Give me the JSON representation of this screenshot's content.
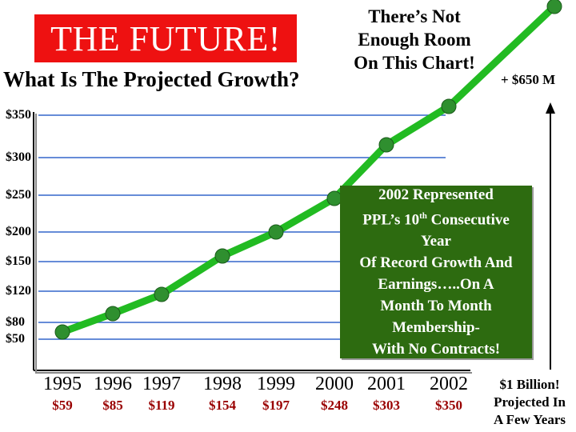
{
  "header": {
    "title": "THE FUTURE!",
    "subtitle": "What Is The Projected Growth?",
    "note_lines": [
      "There’s Not",
      "Enough Room",
      "On This Chart!"
    ],
    "plus_label": "+ $650 M"
  },
  "colors": {
    "title_bg": "#ee1111",
    "line": "#22bb22",
    "marker": "#2f8f2f",
    "grid": "#3366cc",
    "value_text": "#990000",
    "callout_bg": "#2d6b10"
  },
  "callout": {
    "line1": "2002 Represented",
    "line2a": "PPL’s 10",
    "line2sup": "th",
    "line2b": " Consecutive",
    "line3": "Year",
    "line4": "Of Record Growth And",
    "line5": "Earnings…..On A",
    "line6": "Month To Month",
    "line7": "Membership-",
    "line8": "With No Contracts!"
  },
  "side_note": {
    "line1": "$1 Billion!",
    "line2": "Projected In",
    "line3": "A Few Years"
  },
  "chart_data": {
    "type": "line",
    "title": "THE FUTURE!",
    "subtitle": "What Is The Projected Growth?",
    "y_tick_labels": [
      "$350",
      "$300",
      "$250",
      "$200",
      "$150",
      "$120",
      "$80",
      "$50"
    ],
    "categories": [
      "1995",
      "1996",
      "1997",
      "1998",
      "1999",
      "2000",
      "2001",
      "2002"
    ],
    "value_labels": [
      "$59",
      "$85",
      "$119",
      "$154",
      "$197",
      "$248",
      "$303",
      "$350"
    ],
    "series": [
      {
        "values": [
          59,
          85,
          119,
          154,
          197,
          248,
          303,
          350
        ]
      }
    ],
    "projection": {
      "label": "+ $650 M",
      "value": 1000
    },
    "grid": true,
    "units": "$ M"
  }
}
